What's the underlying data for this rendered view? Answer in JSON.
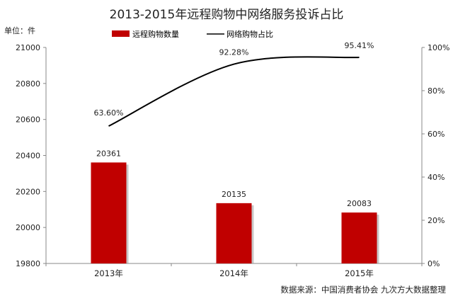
{
  "chart_data": {
    "type": "bar",
    "title": "2013-2015年远程购物中网络服务投诉占比",
    "unit_label": "单位：件",
    "source": "数据来源：中国消费者协会  九次方大数据整理",
    "categories": [
      "2013年",
      "2014年",
      "2015年"
    ],
    "y_left": {
      "min": 19800,
      "max": 21000,
      "ticks": [
        19800,
        20000,
        20200,
        20400,
        20600,
        20800,
        21000
      ]
    },
    "y_right": {
      "min": 0,
      "max": 100,
      "ticks": [
        "0%",
        "20%",
        "40%",
        "60%",
        "80%",
        "100%"
      ]
    },
    "series": [
      {
        "name": "远程购物数量",
        "kind": "bar",
        "axis": "left",
        "color": "#c00000",
        "values": [
          20361,
          20135,
          20083
        ],
        "labels": [
          "20361",
          "20135",
          "20083"
        ]
      },
      {
        "name": "网络购物占比",
        "kind": "line",
        "axis": "right",
        "color": "#000000",
        "values": [
          63.6,
          92.28,
          95.41
        ],
        "labels": [
          "63.60%",
          "92.28%",
          "95.41%"
        ]
      }
    ],
    "legend": "top-center",
    "grid": false
  }
}
